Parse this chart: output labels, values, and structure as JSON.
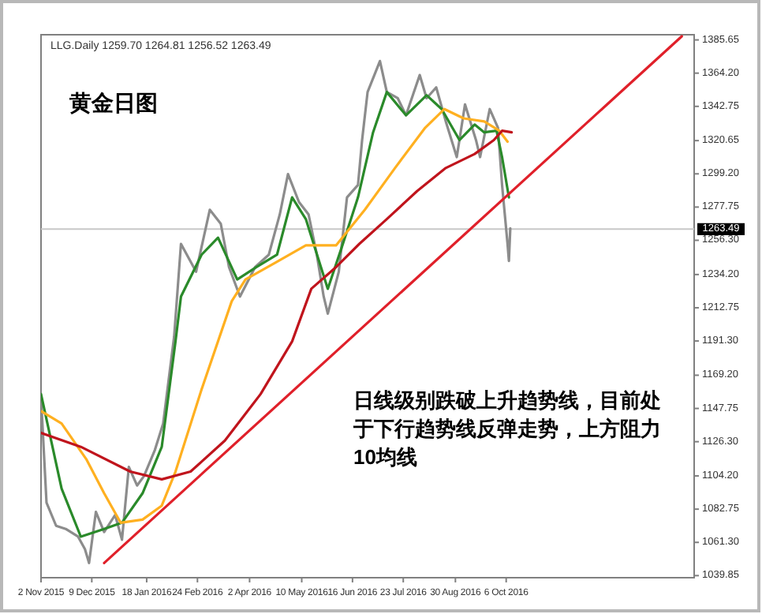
{
  "chart_data": {
    "type": "line",
    "title": "黄金日图",
    "annotations": [
      "LLG.Daily 1259.70 1264.81 1256.52 1263.49",
      "日线级别跌破上升趋势线，目前处于下行趋势线反弹走势，上方阻力10均线"
    ],
    "xlim": [
      "2015-11-02",
      "2017-02-20"
    ],
    "xticks": [
      {
        "value": "2015-11-02",
        "label": "2 Nov 2015"
      },
      {
        "value": "2015-12-09",
        "label": "9 Dec 2015"
      },
      {
        "value": "2016-01-18",
        "label": "18 Jan 2016"
      },
      {
        "value": "2016-02-24",
        "label": "24 Feb 2016"
      },
      {
        "value": "2016-04-02",
        "label": "2 Apr 2016"
      },
      {
        "value": "2016-05-10",
        "label": "10 May 2016"
      },
      {
        "value": "2016-06-16",
        "label": "16 Jun 2016"
      },
      {
        "value": "2016-07-23",
        "label": "23 Jul 2016"
      },
      {
        "value": "2016-08-30",
        "label": "30 Aug 2016"
      },
      {
        "value": "2016-10-06",
        "label": "6 Oct 2016"
      }
    ],
    "ylim": [
      1038.5,
      1389
    ],
    "yticks": [
      1385.65,
      {
        "value": 1364.2,
        "label": "1364.20"
      },
      1342.75,
      1320.65,
      {
        "value": 1299.2,
        "label": "1299.20"
      },
      1277.75,
      {
        "value": 1256.3,
        "label": "1256.30"
      },
      {
        "value": 1234.2,
        "label": "1234.20"
      },
      1212.75,
      {
        "value": 1191.3,
        "label": "1191.30"
      },
      {
        "value": 1169.2,
        "label": "1169.20"
      },
      1147.75,
      {
        "value": 1126.3,
        "label": "1126.30"
      },
      {
        "value": 1104.2,
        "label": "1104.20"
      },
      1082.75,
      {
        "value": 1061.3,
        "label": "1061.30"
      },
      1039.85
    ],
    "ref_lines": [
      {
        "axis": "y",
        "value": 1263.49,
        "label": "1263.49",
        "color": "#c8c8c8"
      }
    ],
    "series": [
      {
        "color": "#8c8c8c",
        "x": [
          "2015-11-02",
          "2015-11-06",
          "2015-11-13",
          "2015-11-20",
          "2015-11-29",
          "2015-12-04",
          "2015-12-07",
          "2015-12-12",
          "2015-12-18",
          "2015-12-26",
          "2015-12-31",
          "2016-01-05",
          "2016-01-11",
          "2016-01-16",
          "2016-01-24",
          "2016-01-30",
          "2016-02-07",
          "2016-02-12",
          "2016-02-23",
          "2016-03-04",
          "2016-03-12",
          "2016-03-18",
          "2016-03-26",
          "2016-04-06",
          "2016-04-16",
          "2016-04-24",
          "2016-04-30",
          "2016-05-08",
          "2016-05-15",
          "2016-05-21",
          "2016-05-26",
          "2016-05-29",
          "2016-06-06",
          "2016-06-12",
          "2016-06-20",
          "2016-06-23",
          "2016-06-27",
          "2016-07-06",
          "2016-07-11",
          "2016-07-19",
          "2016-07-25",
          "2016-08-04",
          "2016-08-09",
          "2016-08-16",
          "2016-08-23",
          "2016-08-31",
          "2016-09-06",
          "2016-09-14",
          "2016-09-17",
          "2016-09-24",
          "2016-09-30",
          "2016-10-03",
          "2016-10-07",
          "2016-10-08",
          "2016-10-09"
        ],
        "values": [
          1155,
          1087,
          1072,
          1070,
          1065,
          1057,
          1048,
          1081,
          1068,
          1079,
          1063,
          1110,
          1098,
          1104,
          1121,
          1138,
          1194,
          1254,
          1236,
          1276,
          1267,
          1239,
          1220,
          1239,
          1247,
          1273,
          1299,
          1281,
          1273,
          1247,
          1220,
          1209,
          1236,
          1284,
          1292,
          1321,
          1352,
          1372,
          1352,
          1348,
          1337,
          1363,
          1348,
          1355,
          1333,
          1310,
          1344,
          1321,
          1310,
          1341,
          1329,
          1292,
          1254,
          1243,
          1264
        ]
      },
      {
        "color": "#2a8a2a",
        "x": [
          "2015-11-02",
          "2015-11-17",
          "2015-12-01",
          "2015-12-18",
          "2015-12-31",
          "2016-01-15",
          "2016-01-29",
          "2016-02-08",
          "2016-02-12",
          "2016-02-27",
          "2016-03-10",
          "2016-03-24",
          "2016-04-07",
          "2016-04-22",
          "2016-05-03",
          "2016-05-13",
          "2016-05-24",
          "2016-05-29",
          "2016-06-09",
          "2016-06-20",
          "2016-07-01",
          "2016-07-11",
          "2016-07-25",
          "2016-08-09",
          "2016-08-20",
          "2016-09-02",
          "2016-09-13",
          "2016-09-20",
          "2016-09-29",
          "2016-10-03",
          "2016-10-08"
        ],
        "values": [
          1157,
          1096,
          1065,
          1070,
          1074,
          1093,
          1123,
          1191,
          1220,
          1247,
          1258,
          1231,
          1239,
          1247,
          1284,
          1270,
          1239,
          1225,
          1254,
          1284,
          1326,
          1352,
          1337,
          1350,
          1341,
          1321,
          1331,
          1326,
          1327,
          1310,
          1284
        ]
      },
      {
        "color": "#ffb020",
        "x": [
          "2015-11-02",
          "2015-11-17",
          "2015-12-05",
          "2015-12-18",
          "2015-12-30",
          "2016-01-15",
          "2016-01-29",
          "2016-02-08",
          "2016-02-27",
          "2016-03-20",
          "2016-03-30",
          "2016-04-21",
          "2016-05-13",
          "2016-06-04",
          "2016-06-25",
          "2016-07-17",
          "2016-08-08",
          "2016-08-22",
          "2016-09-05",
          "2016-09-20",
          "2016-10-01",
          "2016-10-07"
        ],
        "values": [
          1146,
          1138,
          1115,
          1093,
          1074,
          1076,
          1085,
          1107,
          1160,
          1217,
          1231,
          1242,
          1253,
          1253,
          1276,
          1303,
          1329,
          1341,
          1335,
          1333,
          1327,
          1320
        ]
      },
      {
        "color": "#c0141c",
        "x": [
          "2015-11-02",
          "2015-12-01",
          "2016-01-06",
          "2016-01-29",
          "2016-02-19",
          "2016-03-15",
          "2016-04-10",
          "2016-05-03",
          "2016-05-17",
          "2016-06-04",
          "2016-06-21",
          "2016-07-11",
          "2016-08-02",
          "2016-08-23",
          "2016-09-13",
          "2016-09-27",
          "2016-10-03",
          "2016-10-10"
        ],
        "values": [
          1132,
          1123,
          1107,
          1102,
          1107,
          1127,
          1157,
          1191,
          1225,
          1239,
          1254,
          1270,
          1288,
          1303,
          1312,
          1321,
          1327,
          1326
        ]
      },
      {
        "color": "#e0202a",
        "x": [
          "2015-12-18",
          "2017-02-11"
        ],
        "values": [
          1048,
          1388
        ]
      }
    ]
  }
}
